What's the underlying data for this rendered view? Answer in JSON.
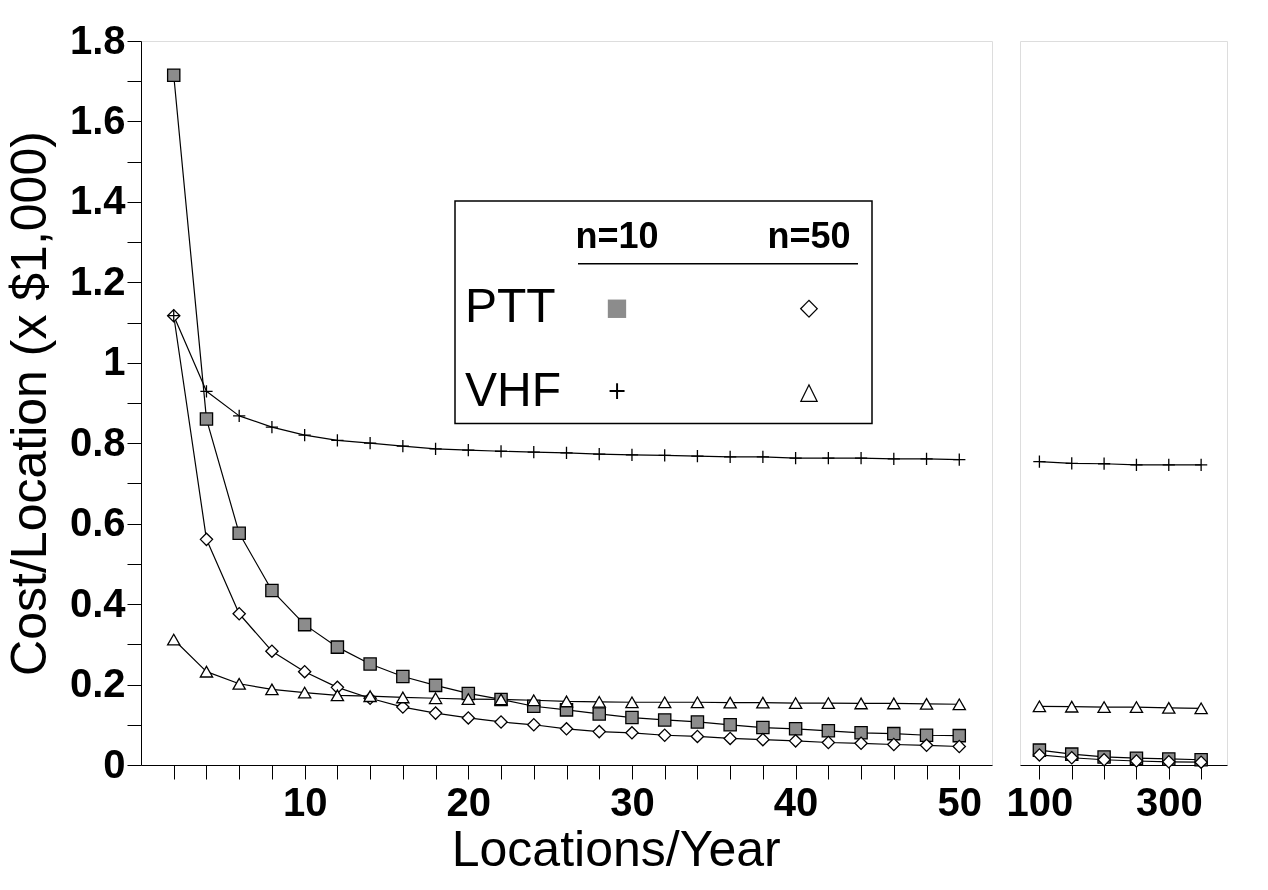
{
  "chart_data": [
    {
      "type": "line",
      "ylabel": "Cost/Location (x $1,000)",
      "xlabel": "Locations/Year",
      "line_style": "solid",
      "annotations": [
        "n=10",
        "n=50",
        "PTT",
        "VHF",
        "■",
        "◇",
        "+",
        "△"
      ],
      "xlim": [
        0,
        52
      ],
      "ylim": [
        0,
        1.8
      ],
      "xticks": [
        {
          "value": 2,
          "label": null
        },
        {
          "value": 4,
          "label": null
        },
        {
          "value": 6,
          "label": null
        },
        {
          "value": 8,
          "label": null
        },
        10,
        {
          "value": 12,
          "label": null
        },
        {
          "value": 14,
          "label": null
        },
        {
          "value": 16,
          "label": null
        },
        {
          "value": 18,
          "label": null
        },
        20,
        {
          "value": 22,
          "label": null
        },
        {
          "value": 24,
          "label": null
        },
        {
          "value": 26,
          "label": null
        },
        {
          "value": 28,
          "label": null
        },
        30,
        {
          "value": 32,
          "label": null
        },
        {
          "value": 34,
          "label": null
        },
        {
          "value": 36,
          "label": null
        },
        {
          "value": 38,
          "label": null
        },
        40,
        {
          "value": 42,
          "label": null
        },
        {
          "value": 44,
          "label": null
        },
        {
          "value": 46,
          "label": null
        },
        {
          "value": 48,
          "label": null
        },
        50
      ],
      "yticks": [
        0,
        {
          "value": 0.1,
          "label": null
        },
        0.2,
        {
          "value": 0.3,
          "label": null
        },
        0.4,
        {
          "value": 0.5,
          "label": null
        },
        0.6,
        {
          "value": 0.7,
          "label": null
        },
        0.8,
        {
          "value": 0.9,
          "label": null
        },
        1,
        {
          "value": 1.1,
          "label": null
        },
        1.2,
        {
          "value": 1.3,
          "label": null
        },
        1.4,
        {
          "value": 1.5,
          "label": null
        },
        1.6,
        {
          "value": 1.7,
          "label": null
        },
        1.8
      ],
      "x": [
        2,
        4,
        6,
        8,
        10,
        12,
        14,
        16,
        18,
        20,
        22,
        24,
        26,
        28,
        30,
        32,
        34,
        36,
        38,
        40,
        42,
        44,
        46,
        48,
        50
      ],
      "series": [
        {
          "color": "#8c8c8c",
          "marker": "square",
          "values": [
            1.715,
            0.86,
            0.576,
            0.434,
            0.349,
            0.293,
            0.251,
            0.22,
            0.198,
            0.178,
            0.163,
            0.146,
            0.137,
            0.127,
            0.118,
            0.112,
            0.107,
            0.1,
            0.093,
            0.09,
            0.085,
            0.08,
            0.078,
            0.074,
            0.073
          ]
        },
        {
          "color": "#000000",
          "marker": "diamond",
          "values": [
            1.117,
            0.561,
            0.376,
            0.283,
            0.232,
            0.193,
            0.166,
            0.144,
            0.129,
            0.117,
            0.107,
            0.1,
            0.09,
            0.083,
            0.08,
            0.074,
            0.071,
            0.066,
            0.063,
            0.06,
            0.056,
            0.054,
            0.051,
            0.049,
            0.046
          ]
        },
        {
          "color": "#000000",
          "marker": "cross",
          "values": [
            1.117,
            0.929,
            0.868,
            0.84,
            0.82,
            0.807,
            0.8,
            0.793,
            0.786,
            0.783,
            0.78,
            0.778,
            0.776,
            0.773,
            0.771,
            0.77,
            0.768,
            0.766,
            0.766,
            0.763,
            0.763,
            0.763,
            0.761,
            0.761,
            0.759
          ]
        },
        {
          "color": "#000000",
          "marker": "triangle",
          "values": [
            0.312,
            0.232,
            0.202,
            0.188,
            0.18,
            0.173,
            0.171,
            0.168,
            0.166,
            0.164,
            0.163,
            0.161,
            0.158,
            0.157,
            0.156,
            0.156,
            0.156,
            0.155,
            0.155,
            0.154,
            0.154,
            0.153,
            0.153,
            0.152,
            0.151
          ]
        }
      ]
    },
    {
      "type": "line",
      "line_style": "solid",
      "tick_labels": "x",
      "xlim": [
        70,
        390
      ],
      "ylim": [
        0,
        1.8
      ],
      "xticks": [
        100,
        {
          "value": 150,
          "label": null
        },
        {
          "value": 200,
          "label": null
        },
        {
          "value": 250,
          "label": null
        },
        300,
        {
          "value": 350,
          "label": null
        }
      ],
      "x": [
        100,
        150,
        200,
        250,
        300,
        350
      ],
      "series": [
        {
          "color": "#8c8c8c",
          "marker": "square",
          "values": [
            0.037,
            0.027,
            0.02,
            0.017,
            0.015,
            0.013
          ]
        },
        {
          "color": "#000000",
          "marker": "diamond",
          "values": [
            0.025,
            0.018,
            0.013,
            0.01,
            0.008,
            0.007
          ]
        },
        {
          "color": "#000000",
          "marker": "cross",
          "values": [
            0.754,
            0.75,
            0.749,
            0.746,
            0.746,
            0.746
          ]
        },
        {
          "color": "#000000",
          "marker": "triangle",
          "values": [
            0.146,
            0.145,
            0.144,
            0.144,
            0.142,
            0.141
          ]
        }
      ]
    }
  ]
}
